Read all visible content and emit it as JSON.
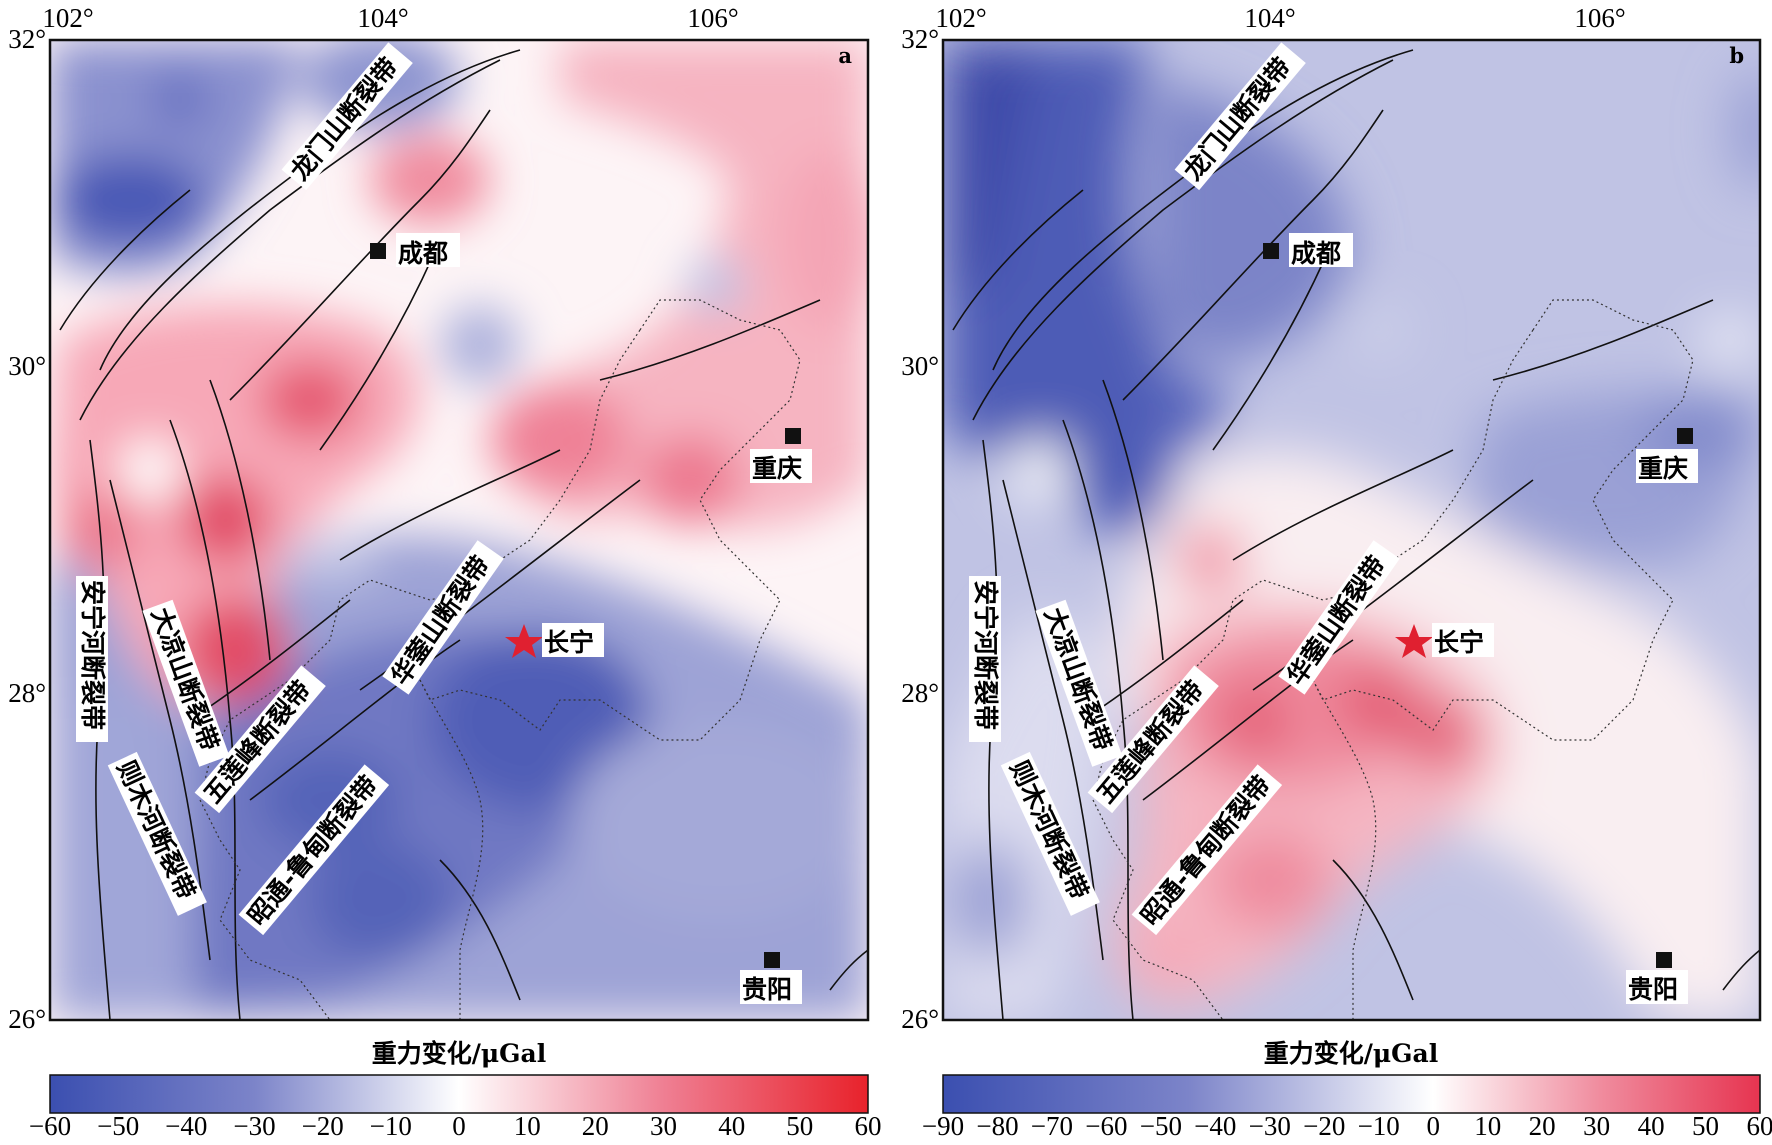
{
  "panels": [
    {
      "id": "a",
      "label": "a",
      "lon_ticks": [
        "102°",
        "104°",
        "106°"
      ],
      "lat_ticks": [
        "32°",
        "30°",
        "28°",
        "26°"
      ],
      "cities": [
        {
          "key": "chengdu",
          "name": "成都"
        },
        {
          "key": "chongqing",
          "name": "重庆"
        },
        {
          "key": "guiyang",
          "name": "贵阳"
        },
        {
          "key": "changning",
          "name": "长宁",
          "marker": "star"
        }
      ],
      "faults": [
        {
          "key": "longmenshan",
          "name": "龙门山断裂带"
        },
        {
          "key": "huayingshan",
          "name": "华蓥山断裂带"
        },
        {
          "key": "anninghe",
          "name": "安宁河断裂带"
        },
        {
          "key": "daliangshan",
          "name": "大凉山断裂带"
        },
        {
          "key": "zemuhe",
          "name": "则木河断裂带"
        },
        {
          "key": "wulianfeng",
          "name": "五莲峰断裂带"
        },
        {
          "key": "zhaotong",
          "name": "昭通-鲁甸断裂带"
        }
      ],
      "colorbar": {
        "title": "重力变化/μGal",
        "ticks": [
          "−60",
          "−50",
          "−40",
          "−30",
          "−20",
          "−10",
          "0",
          "10",
          "20",
          "30",
          "40",
          "50",
          "60"
        ],
        "min_color": "#3b4fb0",
        "zero_color": "#ffffff",
        "max_color": "#e8222b"
      }
    },
    {
      "id": "b",
      "label": "b",
      "lon_ticks": [
        "102°",
        "104°",
        "106°"
      ],
      "lat_ticks": [
        "32°",
        "30°",
        "28°",
        "26°"
      ],
      "cities": [
        {
          "key": "chengdu",
          "name": "成都"
        },
        {
          "key": "chongqing",
          "name": "重庆"
        },
        {
          "key": "guiyang",
          "name": "贵阳"
        },
        {
          "key": "changning",
          "name": "长宁",
          "marker": "star"
        }
      ],
      "faults": [
        {
          "key": "longmenshan",
          "name": "龙门山断裂带"
        },
        {
          "key": "huayingshan",
          "name": "华蓥山断裂带"
        },
        {
          "key": "anninghe",
          "name": "安宁河断裂带"
        },
        {
          "key": "daliangshan",
          "name": "大凉山断裂带"
        },
        {
          "key": "zemuhe",
          "name": "则木河断裂带"
        },
        {
          "key": "wulianfeng",
          "name": "五莲峰断裂带"
        },
        {
          "key": "zhaotong",
          "name": "昭通-鲁甸断裂带"
        }
      ],
      "colorbar": {
        "title": "重力变化/μGal",
        "ticks": [
          "−90",
          "−80",
          "−70",
          "−60",
          "−50",
          "−40",
          "−30",
          "−20",
          "−10",
          "0",
          "10",
          "20",
          "30",
          "40",
          "50",
          "60"
        ],
        "min_color": "#3b4fb0",
        "zero_color": "#ffffff",
        "max_color": "#e8222b"
      }
    }
  ],
  "colors": {
    "deep_blue": "#4a5ab8",
    "mid_blue": "#7f88cc",
    "light_blue": "#c3c7e6",
    "light_red": "#f6b9c3",
    "mid_red": "#ef8196",
    "deep_red": "#e3485f",
    "fault_line": "#111111",
    "border_line": "#333333",
    "star": "#e02030"
  }
}
